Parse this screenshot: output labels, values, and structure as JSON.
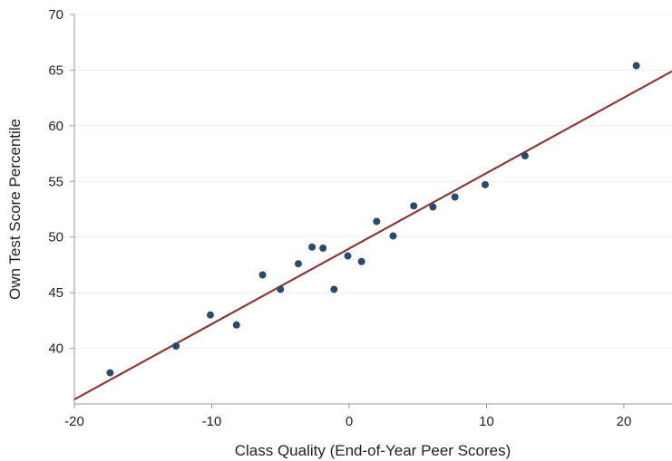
{
  "chart_data": {
    "type": "scatter",
    "title": "",
    "xlabel": "Class Quality (End-of-Year Peer Scores)",
    "ylabel": "Own Test Score Percentile",
    "xlim": [
      -20,
      23.5
    ],
    "ylim": [
      35,
      70
    ],
    "xticks": [
      -20,
      -10,
      0,
      10,
      20
    ],
    "yticks": [
      40,
      45,
      50,
      55,
      60,
      65,
      70
    ],
    "grid": "horizontal",
    "legend": "none",
    "colors": {
      "points": "#2b4a6e",
      "line": "#8b3a3a",
      "grid": "#eeeeee",
      "axis": "#999999"
    },
    "points": [
      {
        "x": -17.4,
        "y": 37.8
      },
      {
        "x": -12.6,
        "y": 40.2
      },
      {
        "x": -10.1,
        "y": 43.0
      },
      {
        "x": -8.2,
        "y": 42.1
      },
      {
        "x": -6.3,
        "y": 46.6
      },
      {
        "x": -5.0,
        "y": 45.3
      },
      {
        "x": -3.7,
        "y": 47.6
      },
      {
        "x": -2.7,
        "y": 49.1
      },
      {
        "x": -1.9,
        "y": 49.0
      },
      {
        "x": -1.1,
        "y": 45.3
      },
      {
        "x": -0.1,
        "y": 48.3
      },
      {
        "x": 0.9,
        "y": 47.8
      },
      {
        "x": 2.0,
        "y": 51.4
      },
      {
        "x": 3.2,
        "y": 50.1
      },
      {
        "x": 4.7,
        "y": 52.8
      },
      {
        "x": 6.1,
        "y": 52.7
      },
      {
        "x": 7.7,
        "y": 53.6
      },
      {
        "x": 9.9,
        "y": 54.7
      },
      {
        "x": 12.8,
        "y": 57.3
      },
      {
        "x": 20.9,
        "y": 65.4
      }
    ],
    "fit_line": {
      "x": [
        -20,
        23.5
      ],
      "y": [
        35.4,
        64.9
      ]
    }
  }
}
